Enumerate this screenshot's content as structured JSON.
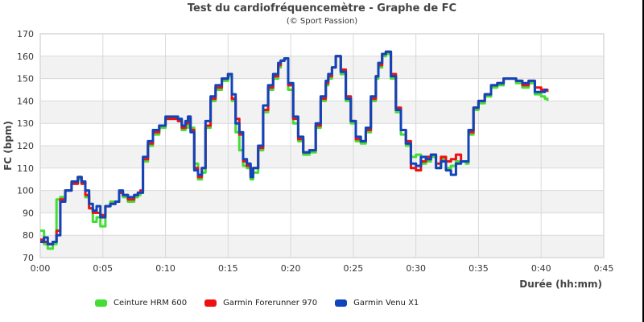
{
  "chart_data": {
    "type": "line",
    "title": "Test du cardiofréquencemètre - Graphe de FC",
    "subtitle": "(© Sport Passion)",
    "xlabel": "Durée (hh:mm)",
    "ylabel": "FC (bpm)",
    "xlim_minutes": [
      0,
      45
    ],
    "ylim": [
      70,
      170
    ],
    "x_ticks": [
      "0:00",
      "0:05",
      "0:10",
      "0:15",
      "0:20",
      "0:25",
      "0:30",
      "0:35",
      "0:40",
      "0:45"
    ],
    "y_ticks": [
      70,
      80,
      90,
      100,
      110,
      120,
      130,
      140,
      150,
      160,
      170
    ],
    "grid": true,
    "legend_position": "bottom",
    "x_minutes": [
      0,
      0.3,
      0.6,
      1.0,
      1.3,
      1.6,
      2.0,
      2.5,
      3.0,
      3.3,
      3.6,
      3.9,
      4.2,
      4.5,
      4.8,
      5.2,
      5.6,
      6.0,
      6.3,
      6.6,
      7.0,
      7.5,
      7.8,
      8.0,
      8.2,
      8.6,
      9.0,
      9.5,
      10.0,
      10.5,
      11.0,
      11.3,
      11.6,
      11.8,
      12.0,
      12.3,
      12.6,
      12.9,
      13.2,
      13.6,
      14.0,
      14.5,
      15.0,
      15.3,
      15.6,
      15.9,
      16.2,
      16.5,
      16.8,
      17.0,
      17.4,
      17.8,
      18.2,
      18.6,
      19.0,
      19.2,
      19.5,
      19.8,
      20.2,
      20.6,
      21.0,
      21.5,
      22.0,
      22.4,
      22.8,
      23.0,
      23.3,
      23.6,
      24.0,
      24.4,
      24.8,
      25.2,
      25.6,
      26.0,
      26.4,
      26.8,
      27.0,
      27.3,
      27.6,
      28.0,
      28.4,
      28.8,
      29.2,
      29.6,
      30.0,
      30.4,
      30.8,
      31.2,
      31.6,
      32.0,
      32.4,
      32.8,
      33.2,
      33.6,
      34.0,
      34.2,
      34.6,
      35.0,
      35.5,
      36.0,
      36.5,
      37.0,
      37.5,
      38.0,
      38.5,
      39.0,
      39.5,
      40.0,
      40.3,
      40.5
    ],
    "series": [
      {
        "name": "Ceinture HRM 600",
        "color": "#44dd33",
        "values": [
          82,
          76,
          74,
          76,
          96,
          97,
          100,
          103,
          105,
          103,
          97,
          92,
          86,
          88,
          84,
          93,
          95,
          95,
          99,
          97,
          95,
          97,
          98,
          99,
          113,
          120,
          125,
          128,
          132,
          132,
          131,
          127,
          128,
          132,
          128,
          112,
          105,
          108,
          128,
          140,
          145,
          149,
          151,
          140,
          126,
          118,
          111,
          110,
          105,
          108,
          118,
          135,
          145,
          150,
          155,
          158,
          159,
          145,
          130,
          122,
          116,
          117,
          128,
          140,
          147,
          150,
          155,
          160,
          152,
          140,
          130,
          122,
          121,
          126,
          140,
          150,
          155,
          160,
          161,
          150,
          135,
          125,
          120,
          115,
          116,
          112,
          113,
          115,
          110,
          114,
          110,
          111,
          113,
          113,
          112,
          125,
          136,
          139,
          142,
          146,
          147,
          150,
          150,
          148,
          146,
          148,
          143,
          142,
          141,
          140
        ]
      },
      {
        "name": "Garmin Forerunner 970",
        "color": "#ee1111",
        "values": [
          78,
          77,
          76,
          77,
          82,
          96,
          100,
          103,
          106,
          103,
          98,
          92,
          90,
          90,
          89,
          93,
          94,
          95,
          99,
          98,
          96,
          98,
          99,
          100,
          114,
          121,
          126,
          129,
          132,
          132,
          131,
          128,
          130,
          133,
          127,
          110,
          106,
          110,
          129,
          141,
          146,
          150,
          152,
          141,
          132,
          125,
          113,
          111,
          107,
          110,
          119,
          136,
          146,
          151,
          156,
          158,
          159,
          147,
          132,
          123,
          117,
          118,
          129,
          141,
          148,
          151,
          155,
          160,
          154,
          142,
          131,
          123,
          122,
          127,
          141,
          151,
          156,
          161,
          162,
          152,
          137,
          127,
          122,
          110,
          109,
          113,
          115,
          116,
          112,
          115,
          113,
          114,
          116,
          113,
          113,
          126,
          137,
          140,
          143,
          147,
          148,
          150,
          150,
          149,
          147,
          149,
          146,
          145,
          145,
          144
        ]
      },
      {
        "name": "Garmin Venu X1",
        "color": "#1144bb",
        "values": [
          77,
          79,
          76,
          77,
          80,
          95,
          100,
          104,
          106,
          104,
          100,
          94,
          91,
          93,
          88,
          93,
          94,
          95,
          100,
          98,
          97,
          98,
          99,
          99,
          115,
          122,
          127,
          129,
          133,
          133,
          132,
          129,
          131,
          133,
          126,
          109,
          107,
          110,
          131,
          142,
          147,
          150,
          152,
          143,
          130,
          126,
          114,
          112,
          106,
          110,
          120,
          138,
          147,
          152,
          157,
          158,
          159,
          148,
          133,
          124,
          117,
          118,
          130,
          142,
          149,
          152,
          155,
          160,
          153,
          141,
          131,
          124,
          122,
          128,
          142,
          151,
          157,
          161,
          162,
          151,
          136,
          127,
          121,
          112,
          111,
          115,
          114,
          116,
          110,
          113,
          109,
          107,
          112,
          113,
          113,
          127,
          137,
          140,
          143,
          147,
          148,
          150,
          150,
          149,
          148,
          149,
          144,
          144,
          145,
          145
        ]
      }
    ]
  },
  "legend": {
    "items": [
      {
        "label": "Ceinture HRM 600",
        "color": "#44dd33"
      },
      {
        "label": "Garmin Forerunner 970",
        "color": "#ee1111"
      },
      {
        "label": "Garmin Venu X1",
        "color": "#1144bb"
      }
    ]
  },
  "colors": {
    "grid": "#d9d9d9",
    "band": "#f2f2f2",
    "text": "#333333"
  }
}
